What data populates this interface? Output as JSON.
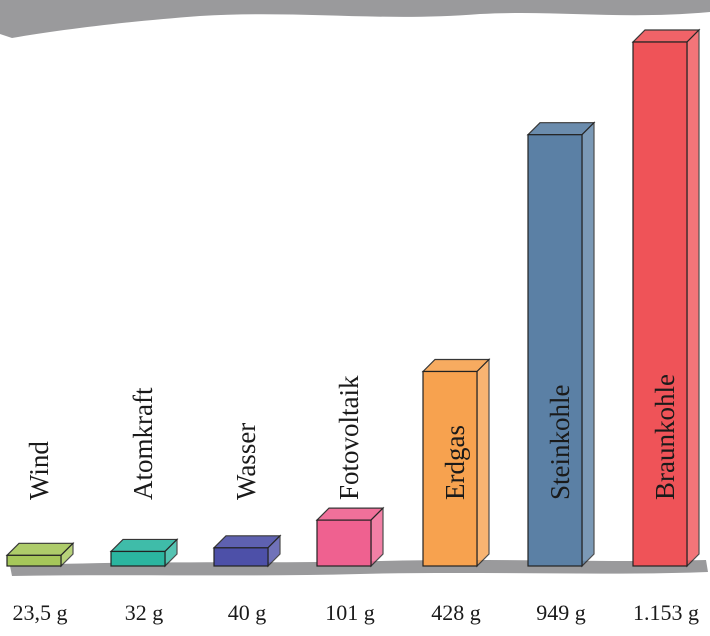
{
  "chart_data": {
    "type": "bar",
    "categories": [
      "Wind",
      "Atomkraft",
      "Wasser",
      "Fotovoltaik",
      "Erdgas",
      "Steinkohle",
      "Braunkohle"
    ],
    "values": [
      23.5,
      32,
      40,
      101,
      428,
      949,
      1153
    ],
    "value_labels": [
      "23,5 g",
      "32 g",
      "40 g",
      "101 g",
      "428 g",
      "949 g",
      "1.153 g"
    ],
    "colors": [
      "#a6c75a",
      "#2bb5a0",
      "#4d50a8",
      "#ef6190",
      "#f7a24f",
      "#5b80a5",
      "#ef5358"
    ]
  }
}
